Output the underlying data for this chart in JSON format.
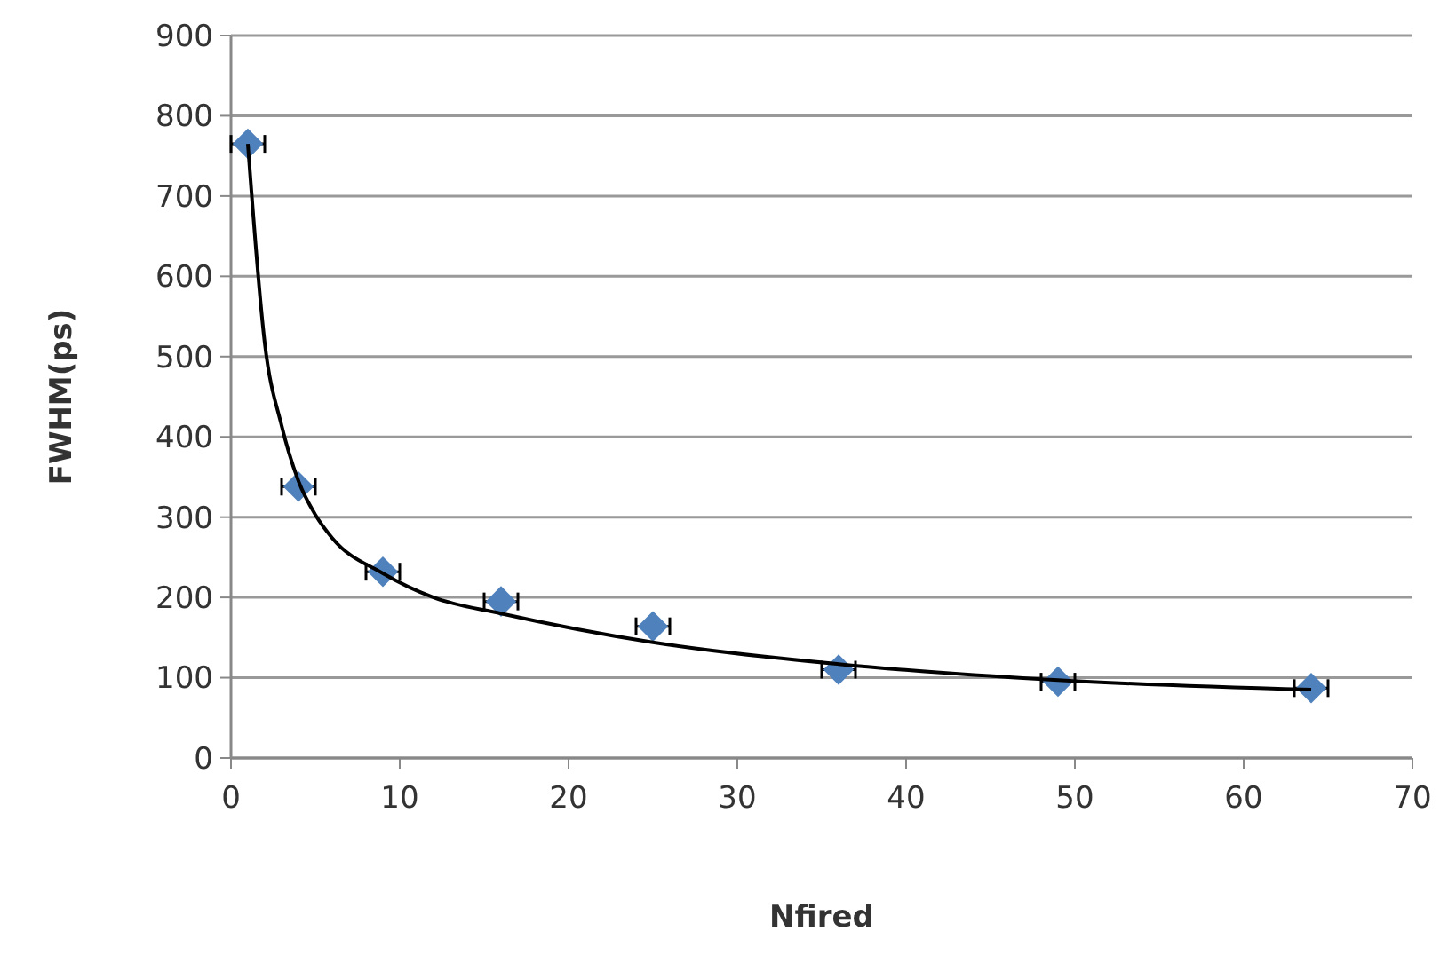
{
  "chart_data": {
    "type": "scatter",
    "xlabel": "Nfired",
    "ylabel": "FWHM(ps)",
    "xlim": [
      0,
      70
    ],
    "ylim": [
      0,
      900
    ],
    "xticks": [
      0,
      10,
      20,
      30,
      40,
      50,
      60,
      70
    ],
    "yticks": [
      0,
      100,
      200,
      300,
      400,
      500,
      600,
      700,
      800,
      900
    ],
    "grid": "y",
    "marker": "diamond",
    "series": [
      {
        "color": "#4f81bd",
        "x": [
          1,
          4,
          9,
          16,
          25,
          36,
          49,
          64
        ],
        "values": [
          765,
          338,
          232,
          195,
          164,
          110,
          95,
          87
        ],
        "xerrors": [
          1,
          1,
          1,
          1,
          1,
          1,
          1,
          1
        ]
      },
      {
        "type": "line",
        "color": "#000000",
        "marker": "none",
        "x": [
          1,
          2,
          3,
          4,
          5,
          6,
          9,
          12,
          16,
          25,
          36,
          49,
          64
        ],
        "values": [
          765,
          517,
          414,
          345,
          303,
          274,
          230,
          200,
          180,
          144,
          117,
          97,
          85
        ]
      }
    ]
  }
}
